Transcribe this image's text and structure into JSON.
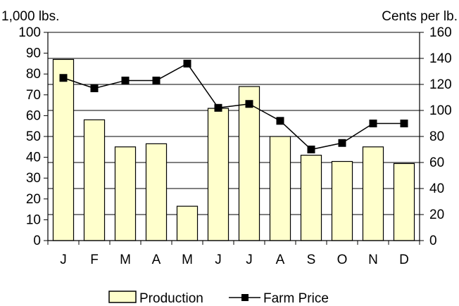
{
  "chart_data": {
    "type": "bar",
    "categories": [
      "J",
      "F",
      "M",
      "A",
      "M",
      "J",
      "J",
      "A",
      "S",
      "O",
      "N",
      "D"
    ],
    "y_left_label": "1,000 lbs.",
    "y_right_label": "Cents per lb.",
    "y_left_lim": [
      0,
      100
    ],
    "y_right_lim": [
      0,
      160
    ],
    "y_left_ticks": [
      "0",
      "10",
      "20",
      "30",
      "40",
      "50",
      "60",
      "70",
      "80",
      "90",
      "100"
    ],
    "y_right_ticks": [
      "0",
      "20",
      "40",
      "60",
      "80",
      "100",
      "120",
      "140",
      "160"
    ],
    "grid": true,
    "legend_position": "bottom",
    "series": [
      {
        "name": "Production",
        "type": "bar",
        "axis": "left",
        "values": [
          87,
          58,
          45,
          46.5,
          16.5,
          63.5,
          74,
          50,
          41,
          38,
          45,
          37
        ]
      },
      {
        "name": "Farm Price",
        "type": "line",
        "axis": "right",
        "values": [
          125,
          117,
          123,
          123,
          136,
          102,
          105,
          92,
          70,
          75,
          90,
          90
        ]
      }
    ],
    "colors": {
      "bar_fill": "#FFFFCC",
      "bar_stroke": "#000000",
      "line": "#000000",
      "grid": "#000000"
    }
  }
}
